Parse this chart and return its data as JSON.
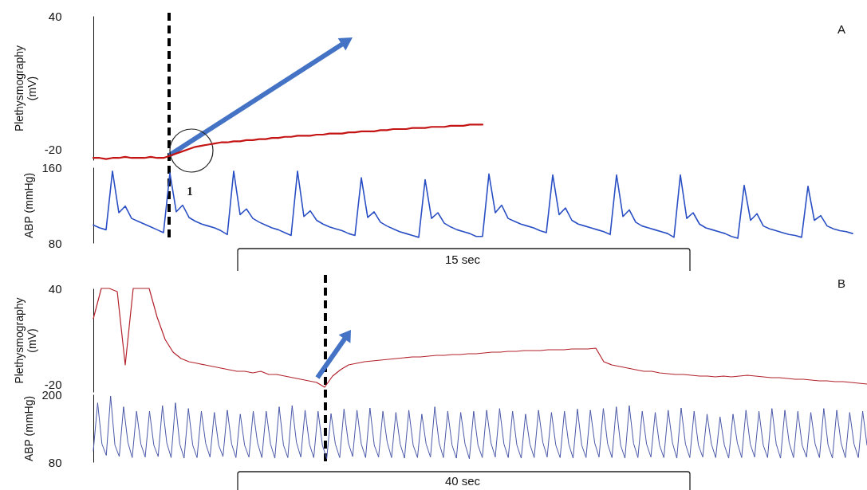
{
  "chart_data": [
    {
      "type": "line",
      "ylabel": "Plethysmography (mV)",
      "ylim": [
        -25,
        40
      ],
      "yticks": [
        -20,
        40
      ],
      "tick_labels": "y",
      "annotations": [
        "A"
      ],
      "categories": [
        null,
        null,
        null,
        null,
        null,
        null,
        null,
        null,
        null,
        null,
        null,
        null,
        null,
        null,
        null,
        null,
        null,
        null,
        null,
        null,
        null,
        null,
        null,
        null,
        null,
        null,
        null,
        null,
        null,
        null,
        null,
        null,
        null,
        null,
        null,
        null,
        null,
        null,
        null,
        null,
        null,
        null,
        null,
        null,
        null,
        null,
        null,
        null,
        null,
        null,
        null,
        null,
        null,
        null,
        null,
        null,
        null,
        null,
        null,
        null,
        null,
        null,
        null,
        null,
        null,
        null,
        null,
        null,
        null,
        null,
        null,
        null,
        null,
        null,
        null,
        null,
        null,
        null,
        null,
        null,
        null,
        null,
        null,
        null,
        null,
        null,
        null,
        null,
        null,
        null,
        null,
        null,
        null,
        null,
        null,
        null,
        null,
        null,
        null,
        null,
        null,
        null,
        null,
        null,
        null,
        null,
        null,
        null,
        null,
        null,
        null,
        null,
        null,
        null,
        null,
        null,
        null,
        null,
        null,
        null,
        null
      ],
      "series": [
        {
          "color": "#c41414",
          "values": [
            -24,
            -24,
            -24.5,
            -24,
            -24,
            -23.5,
            -24,
            -24,
            -24,
            -23.5,
            -24,
            -24,
            -23,
            -22,
            -21,
            -20,
            -19,
            -18.5,
            -18,
            -17.5,
            -17,
            -17,
            -16.5,
            -16.5,
            -16,
            -16,
            -15.5,
            -15.5,
            -15,
            -15,
            -14.5,
            -14.5,
            -14,
            -14,
            -14,
            -13.5,
            -13.5,
            -13,
            -13,
            -13,
            -12.5,
            -12.5,
            -12,
            -12,
            -12,
            -11.5,
            -11.5,
            -11,
            -11,
            -11,
            -10.5,
            -10.5,
            -10.5,
            -10,
            -10,
            -10,
            -9.5,
            -9.5,
            -9.5,
            -9,
            -9,
            -9,
            null,
            null,
            null,
            null,
            null,
            null,
            null,
            null,
            null,
            null,
            null,
            null,
            null,
            null,
            null,
            null,
            null,
            null,
            null,
            null,
            null,
            null,
            null,
            null,
            null,
            null,
            null,
            null,
            null,
            null,
            null,
            null,
            null,
            null,
            null,
            null,
            null,
            null,
            null,
            null,
            null,
            null,
            null,
            null,
            null,
            null,
            null,
            null,
            null,
            null,
            null,
            null,
            null,
            null,
            null,
            null,
            null,
            null,
            null
          ]
        }
      ]
    },
    {
      "type": "line",
      "ylabel": "ABP (mmHg)",
      "ylim": [
        80,
        160
      ],
      "yticks": [
        80,
        160
      ],
      "tick_labels": "y",
      "annotations": [
        "1",
        "15 sec"
      ],
      "categories": [
        null,
        null,
        null,
        null,
        null,
        null,
        null,
        null,
        null,
        null,
        null,
        null,
        null,
        null,
        null,
        null,
        null,
        null,
        null,
        null,
        null,
        null,
        null,
        null,
        null,
        null,
        null,
        null,
        null,
        null,
        null,
        null,
        null,
        null,
        null,
        null,
        null,
        null,
        null,
        null,
        null,
        null,
        null,
        null,
        null,
        null,
        null,
        null,
        null,
        null,
        null,
        null,
        null,
        null,
        null,
        null,
        null,
        null,
        null,
        null,
        null,
        null,
        null,
        null,
        null,
        null,
        null,
        null,
        null,
        null,
        null,
        null,
        null,
        null,
        null,
        null,
        null,
        null,
        null,
        null,
        null,
        null,
        null,
        null,
        null,
        null,
        null,
        null,
        null,
        null,
        null,
        null,
        null,
        null,
        null,
        null,
        null,
        null,
        null,
        null,
        null,
        null,
        null,
        null,
        null,
        null,
        null,
        null,
        null,
        null,
        null,
        null,
        null,
        null,
        null,
        null,
        null,
        null,
        null,
        null,
        null
      ],
      "series": [
        {
          "color": "#2a4fc4",
          "values": [
            99,
            96,
            94,
            156,
            112,
            119,
            106,
            103,
            100,
            97,
            94,
            91,
            154,
            113,
            120,
            107,
            103,
            100,
            98,
            96,
            93,
            89,
            156,
            110,
            116,
            106,
            102,
            99,
            96,
            94,
            91,
            88,
            156,
            108,
            114,
            104,
            100,
            97,
            95,
            93,
            90,
            88,
            149,
            107,
            113,
            102,
            98,
            95,
            92,
            90,
            88,
            86,
            147,
            106,
            112,
            101,
            97,
            94,
            92,
            90,
            87,
            87,
            153,
            112,
            120,
            106,
            103,
            100,
            98,
            96,
            93,
            91,
            152,
            110,
            117,
            104,
            100,
            98,
            96,
            94,
            92,
            89,
            152,
            108,
            115,
            102,
            98,
            96,
            94,
            92,
            90,
            86,
            152,
            106,
            112,
            100,
            96,
            94,
            92,
            90,
            87,
            85,
            141,
            104,
            111,
            98,
            95,
            93,
            91,
            89,
            88,
            86,
            140,
            104,
            109,
            98,
            95,
            93,
            92,
            90,
            null
          ]
        }
      ]
    },
    {
      "type": "line",
      "ylabel": "Plethysmography (mV)",
      "ylim": [
        -25,
        40
      ],
      "yticks": [
        -20,
        40
      ],
      "tick_labels": "y",
      "annotations": [
        "B"
      ],
      "categories": [
        null,
        null,
        null,
        null,
        null,
        null,
        null,
        null,
        null,
        null,
        null,
        null,
        null,
        null,
        null,
        null,
        null,
        null,
        null,
        null,
        null,
        null,
        null,
        null,
        null,
        null,
        null,
        null,
        null,
        null,
        null,
        null,
        null,
        null,
        null,
        null,
        null,
        null,
        null,
        null,
        null,
        null,
        null,
        null,
        null,
        null,
        null,
        null,
        null,
        null,
        null,
        null,
        null,
        null,
        null,
        null,
        null,
        null,
        null,
        null,
        null,
        null,
        null,
        null,
        null,
        null,
        null,
        null,
        null,
        null,
        null,
        null,
        null,
        null,
        null,
        null,
        null,
        null,
        null,
        null,
        null,
        null,
        null,
        null,
        null,
        null,
        null,
        null,
        null,
        null,
        null,
        null,
        null,
        null,
        null,
        null,
        null,
        null
      ],
      "series": [
        {
          "color": "#b3222c",
          "values": [
            21,
            40,
            40,
            38,
            -8,
            40,
            40,
            40,
            22,
            8,
            0,
            -4,
            -6,
            -7,
            -8,
            -9,
            -10,
            -11,
            -12,
            -12,
            -13,
            -12,
            -14,
            -14,
            -15,
            -16,
            -17,
            -18,
            -19,
            -22,
            -15,
            -11,
            -8,
            -7,
            -6,
            -5.5,
            -5,
            -4.5,
            -4,
            -3.5,
            -3,
            -3,
            -2.5,
            -2,
            -2,
            -1.5,
            -1.5,
            -1,
            -1,
            -0.5,
            0,
            0,
            0.5,
            0.5,
            1,
            1,
            1,
            1.5,
            1.5,
            1.5,
            2,
            2,
            2,
            2.5,
            -6,
            -8,
            -9,
            -10,
            -11,
            -12,
            -12,
            -13,
            -13.5,
            -14,
            -14,
            -14.5,
            -15,
            -15,
            -15.5,
            -15,
            -15.5,
            -15,
            -14.5,
            -15,
            -15.5,
            -16,
            -16,
            -16.5,
            -17,
            -17,
            -17.5,
            -18,
            -18,
            -18.5,
            -18.5,
            -19,
            -19.5,
            -20
          ]
        }
      ]
    },
    {
      "type": "line",
      "ylabel": "ABP (mmHg)",
      "ylim": [
        80,
        200
      ],
      "yticks": [
        80,
        200
      ],
      "tick_labels": "y",
      "annotations": [
        "40 sec"
      ],
      "categories": [
        null,
        null,
        null,
        null,
        null,
        null,
        null,
        null,
        null,
        null,
        null,
        null,
        null,
        null,
        null,
        null,
        null,
        null,
        null,
        null,
        null,
        null,
        null,
        null,
        null,
        null,
        null,
        null,
        null,
        null,
        null,
        null,
        null,
        null,
        null,
        null,
        null,
        null,
        null,
        null,
        null,
        null,
        null,
        null,
        null,
        null,
        null,
        null,
        null,
        null,
        null,
        null,
        null,
        null,
        null,
        null,
        null,
        null,
        null,
        null,
        null,
        null,
        null,
        null,
        null,
        null,
        null,
        null,
        null,
        null,
        null,
        null,
        null,
        null,
        null,
        null,
        null,
        null,
        null,
        null,
        null,
        null,
        null,
        null,
        null,
        null,
        null,
        null,
        null,
        null,
        null,
        null,
        null,
        null,
        null,
        null,
        null,
        null,
        null,
        null,
        null,
        null,
        null,
        null,
        null,
        null,
        null,
        null,
        null,
        null,
        null,
        null,
        null,
        null,
        null,
        null,
        null,
        null,
        null,
        null,
        null,
        null,
        null,
        null,
        null,
        null,
        null,
        null,
        null,
        null,
        null,
        null,
        null,
        null,
        null,
        null,
        null,
        null,
        null,
        null,
        null,
        null,
        null,
        null,
        null,
        null,
        null,
        null,
        null,
        null,
        null,
        null,
        null,
        null,
        null,
        null,
        null,
        null,
        null,
        null,
        null,
        null,
        null,
        null,
        null,
        null,
        null,
        null,
        null,
        null,
        null,
        null,
        null,
        null,
        null,
        null,
        null,
        null,
        null,
        null
      ],
      "series": [
        {
          "color": "#4a58a8",
          "values": [
            100,
            185,
            112,
            92,
            197,
            110,
            90,
            178,
            115,
            88,
            170,
            112,
            89,
            170,
            110,
            90,
            180,
            114,
            88,
            185,
            112,
            87,
            175,
            110,
            88,
            170,
            113,
            89,
            168,
            110,
            90,
            172,
            112,
            88,
            165,
            110,
            89,
            170,
            114,
            88,
            170,
            112,
            87,
            178,
            110,
            88,
            180,
            115,
            89,
            172,
            112,
            88,
            170,
            110,
            86,
            166,
            112,
            88,
            174,
            114,
            90,
            172,
            112,
            88,
            176,
            110,
            89,
            170,
            115,
            88,
            168,
            112,
            87,
            172,
            110,
            88,
            165,
            112,
            89,
            178,
            114,
            88,
            170,
            110,
            87,
            168,
            112,
            86,
            170,
            110,
            88,
            172,
            114,
            89,
            175,
            112,
            88,
            170,
            110,
            87,
            165,
            112,
            88,
            172,
            115,
            89,
            168,
            110,
            88,
            170,
            112,
            87,
            174,
            110,
            88,
            172,
            114,
            89,
            175,
            112,
            88,
            178,
            110,
            87,
            180,
            113,
            88,
            170,
            112,
            89,
            168,
            110,
            88,
            172,
            114,
            87,
            176,
            112,
            88,
            170,
            110,
            89,
            165,
            112,
            88,
            160,
            110,
            87,
            165,
            114,
            88,
            172,
            112,
            89,
            170,
            110,
            88,
            175,
            112,
            87,
            172,
            114,
            88,
            170,
            110,
            89,
            168,
            112,
            88,
            175,
            110,
            87,
            172,
            114,
            88,
            168,
            112,
            88,
            170,
            110
          ]
        }
      ]
    }
  ]
}
